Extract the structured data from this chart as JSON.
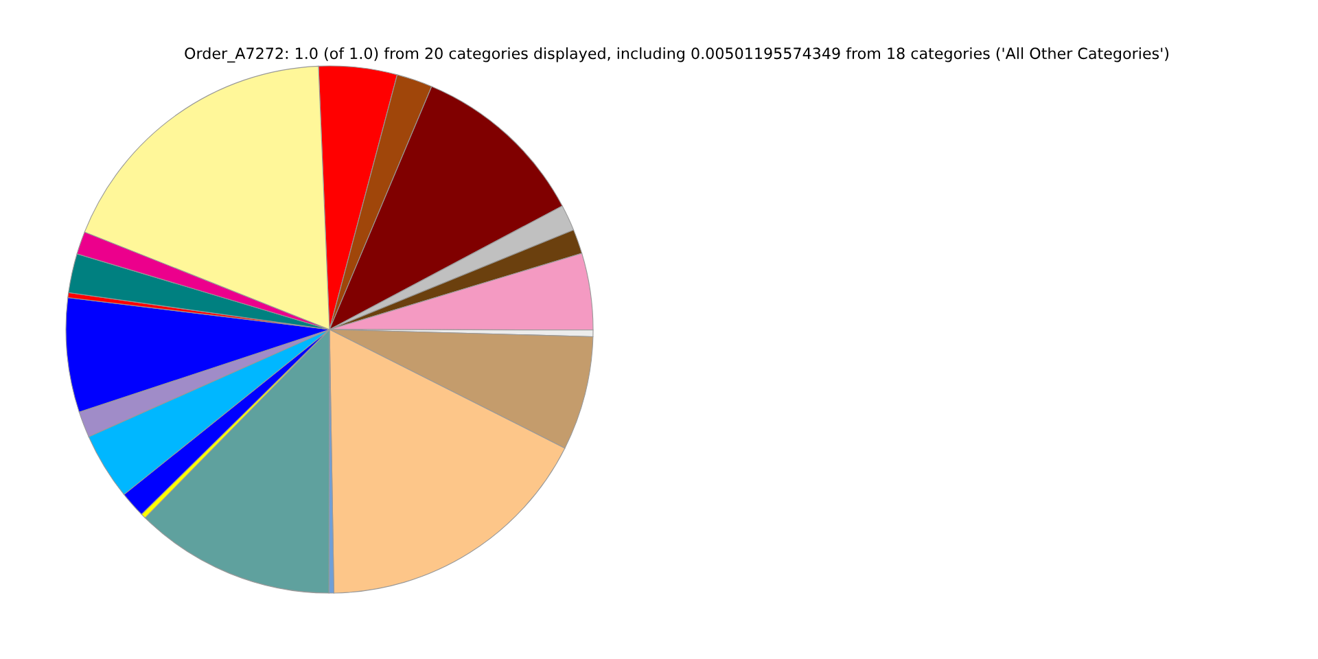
{
  "chart_data": {
    "type": "pie",
    "title": "Order_A7272: 1.0 (of 1.0) from 20 categories displayed, including 0.00501195574349 from 18 categories ('All Other Categories')",
    "categories": [
      null,
      null,
      null,
      null,
      null,
      null,
      null,
      null,
      null,
      null,
      null,
      null,
      null,
      null,
      null,
      null,
      null,
      null,
      null,
      null
    ],
    "values": [
      4.8,
      2.2,
      10.9,
      1.6,
      1.5,
      4.7,
      0.4,
      7.0,
      17.3,
      0.3,
      12.3,
      0.3,
      1.6,
      4.1,
      1.6,
      7.0,
      0.3,
      2.4,
      1.4,
      18.3
    ],
    "colors": [
      "#ff0000",
      "#a0460a",
      "#800000",
      "#c0c0c0",
      "#6b400e",
      "#f49ac2",
      "#ececec",
      "#c49c6c",
      "#fdc689",
      "#6f9fd8",
      "#5fa19e",
      "#ffff00",
      "#0000ff",
      "#00b7ff",
      "#a08cc8",
      "#0000ff",
      "#ff0000",
      "#008080",
      "#ec008c",
      "#fff799"
    ]
  }
}
